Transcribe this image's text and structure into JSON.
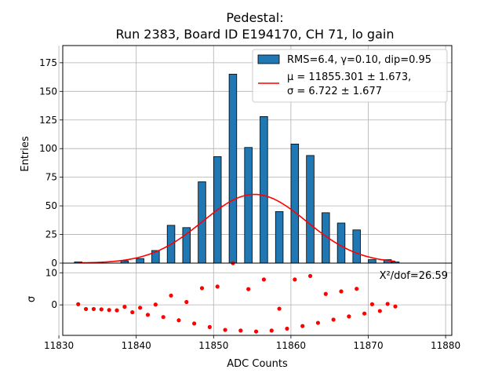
{
  "chart_data": [
    {
      "type": "bar",
      "title_line1": "Pedestal:",
      "title_line2": "Run 2383, Board ID E194170, CH 71, lo gain",
      "ylabel": "Entries",
      "xlim": [
        11830.5,
        11880.8
      ],
      "ylim": [
        0,
        190
      ],
      "yticks": [
        0,
        25,
        50,
        75,
        100,
        125,
        150,
        175
      ],
      "grid": true,
      "bar_color": "#1f77b4",
      "fit_color": "#ff0000",
      "bins": [
        {
          "x": 11832.5,
          "count": 1
        },
        {
          "x": 11838.5,
          "count": 2
        },
        {
          "x": 11840.5,
          "count": 4
        },
        {
          "x": 11842.5,
          "count": 11
        },
        {
          "x": 11844.5,
          "count": 33
        },
        {
          "x": 11846.5,
          "count": 31
        },
        {
          "x": 11848.5,
          "count": 71
        },
        {
          "x": 11850.5,
          "count": 93
        },
        {
          "x": 11852.5,
          "count": 165
        },
        {
          "x": 11854.5,
          "count": 101
        },
        {
          "x": 11856.5,
          "count": 128
        },
        {
          "x": 11858.5,
          "count": 45
        },
        {
          "x": 11860.5,
          "count": 104
        },
        {
          "x": 11862.5,
          "count": 94
        },
        {
          "x": 11864.5,
          "count": 44
        },
        {
          "x": 11866.5,
          "count": 35
        },
        {
          "x": 11868.5,
          "count": 29
        },
        {
          "x": 11870.5,
          "count": 3
        },
        {
          "x": 11872.5,
          "count": 3
        },
        {
          "x": 11873.5,
          "count": 1
        }
      ],
      "fit": {
        "mu": 11855.301,
        "sigma": 6.722,
        "amplitude": 60
      },
      "legend": {
        "placement": "top-right",
        "hist_label": "RMS=6.4, γ=0.10, dip=0.95",
        "fit_label_line1": "μ = 11855.301 ± 1.673,",
        "fit_label_line2": "σ = 6.722 ± 1.677"
      }
    },
    {
      "type": "scatter",
      "ylabel": "σ",
      "xlabel": "ADC Counts",
      "xlim": [
        11830.5,
        11880.8
      ],
      "ylim": [
        -9.5,
        13
      ],
      "yticks": [
        0,
        10
      ],
      "xticks": [
        11830,
        11840,
        11850,
        11860,
        11870,
        11880
      ],
      "grid": true,
      "point_color": "#ff0000",
      "annotation": "X²/dof=26.59",
      "points": [
        {
          "x": 11832.5,
          "y": 0.2
        },
        {
          "x": 11833.5,
          "y": -1.3
        },
        {
          "x": 11834.5,
          "y": -1.3
        },
        {
          "x": 11835.5,
          "y": -1.4
        },
        {
          "x": 11836.5,
          "y": -1.6
        },
        {
          "x": 11837.5,
          "y": -1.7
        },
        {
          "x": 11838.5,
          "y": -0.6
        },
        {
          "x": 11839.5,
          "y": -2.3
        },
        {
          "x": 11840.5,
          "y": -0.9
        },
        {
          "x": 11841.5,
          "y": -3.1
        },
        {
          "x": 11842.5,
          "y": 0.1
        },
        {
          "x": 11843.5,
          "y": -3.8
        },
        {
          "x": 11844.5,
          "y": 2.9
        },
        {
          "x": 11845.5,
          "y": -4.8
        },
        {
          "x": 11846.5,
          "y": 0.9
        },
        {
          "x": 11847.5,
          "y": -5.8
        },
        {
          "x": 11848.5,
          "y": 5.2
        },
        {
          "x": 11849.5,
          "y": -6.9
        },
        {
          "x": 11850.5,
          "y": 5.7
        },
        {
          "x": 11851.5,
          "y": -7.8
        },
        {
          "x": 11852.5,
          "y": 13
        },
        {
          "x": 11853.5,
          "y": -8.0
        },
        {
          "x": 11854.5,
          "y": 4.9
        },
        {
          "x": 11855.5,
          "y": -8.3
        },
        {
          "x": 11856.5,
          "y": 7.9
        },
        {
          "x": 11857.5,
          "y": -8.0
        },
        {
          "x": 11858.5,
          "y": -1.2
        },
        {
          "x": 11859.5,
          "y": -7.4
        },
        {
          "x": 11860.5,
          "y": 7.9
        },
        {
          "x": 11861.5,
          "y": -6.6
        },
        {
          "x": 11862.5,
          "y": 9.0
        },
        {
          "x": 11863.5,
          "y": -5.6
        },
        {
          "x": 11864.5,
          "y": 3.4
        },
        {
          "x": 11865.5,
          "y": -4.6
        },
        {
          "x": 11866.5,
          "y": 4.2
        },
        {
          "x": 11867.5,
          "y": -3.6
        },
        {
          "x": 11868.5,
          "y": 5.0
        },
        {
          "x": 11869.5,
          "y": -2.7
        },
        {
          "x": 11870.5,
          "y": 0.2
        },
        {
          "x": 11871.5,
          "y": -1.9
        },
        {
          "x": 11872.5,
          "y": 0.3
        },
        {
          "x": 11873.5,
          "y": -0.5
        }
      ]
    }
  ]
}
